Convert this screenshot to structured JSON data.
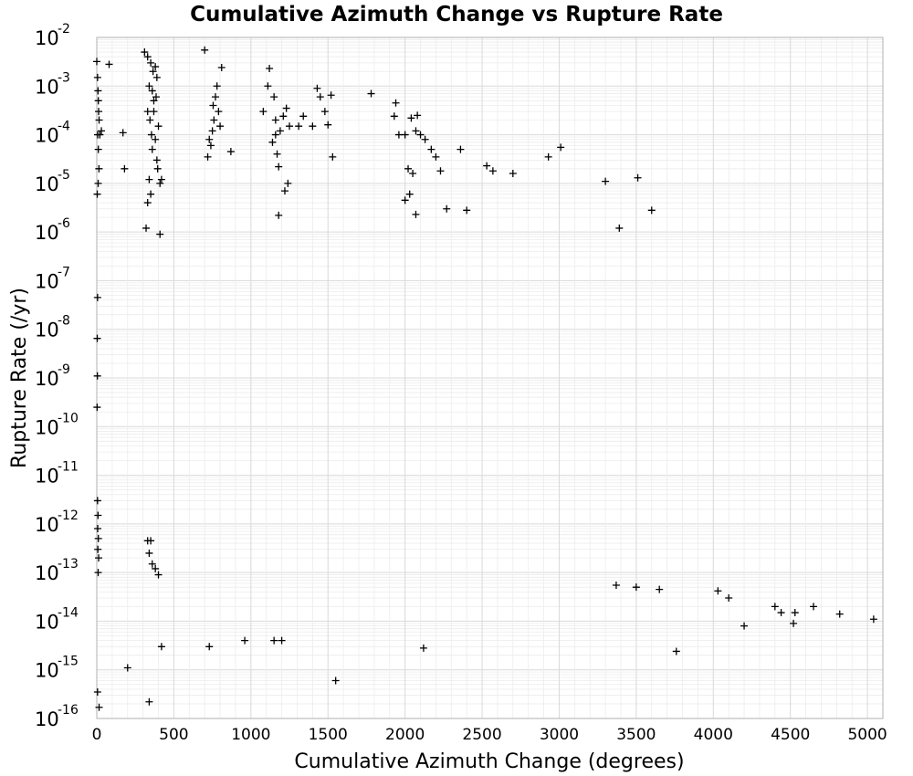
{
  "chart_data": {
    "type": "scatter",
    "title": "Cumulative Azimuth Change vs Rupture Rate",
    "xlabel": "Cumulative Azimuth Change (degrees)",
    "ylabel": "Rupture Rate (/yr)",
    "xlim": [
      0,
      5100
    ],
    "ylim": [
      1e-16,
      0.01
    ],
    "yscale": "log",
    "grid": true,
    "marker": "+",
    "marker_color": "#000000",
    "xticks": [
      "0",
      "500",
      "1000",
      "1500",
      "2000",
      "2500",
      "3000",
      "3500",
      "4000",
      "4500",
      "5000"
    ],
    "yticks": [
      {
        "base": "10",
        "exp": "-2"
      },
      {
        "base": "10",
        "exp": "-3"
      },
      {
        "base": "10",
        "exp": "-4"
      },
      {
        "base": "10",
        "exp": "-5"
      },
      {
        "base": "10",
        "exp": "-6"
      },
      {
        "base": "10",
        "exp": "-7"
      },
      {
        "base": "10",
        "exp": "-8"
      },
      {
        "base": "10",
        "exp": "-9"
      },
      {
        "base": "10",
        "exp": "-10"
      },
      {
        "base": "10",
        "exp": "-11"
      },
      {
        "base": "10",
        "exp": "-12"
      },
      {
        "base": "10",
        "exp": "-13"
      },
      {
        "base": "10",
        "exp": "-14"
      },
      {
        "base": "10",
        "exp": "-15"
      },
      {
        "base": "10",
        "exp": "-16"
      }
    ],
    "points": [
      [
        0,
        0.0032
      ],
      [
        5,
        0.0015
      ],
      [
        8,
        0.0008
      ],
      [
        10,
        0.0005
      ],
      [
        12,
        0.0003
      ],
      [
        15,
        0.0002
      ],
      [
        6,
        0.0001
      ],
      [
        10,
        5e-05
      ],
      [
        14,
        2e-05
      ],
      [
        9,
        1e-05
      ],
      [
        3,
        6e-06
      ],
      [
        20,
        0.0001
      ],
      [
        30,
        0.00012
      ],
      [
        80,
        0.0028
      ],
      [
        170,
        0.00011
      ],
      [
        180,
        2e-05
      ],
      [
        310,
        0.005
      ],
      [
        330,
        0.004
      ],
      [
        350,
        0.003
      ],
      [
        380,
        0.0025
      ],
      [
        390,
        0.0015
      ],
      [
        340,
        0.001
      ],
      [
        360,
        0.0008
      ],
      [
        370,
        0.0005
      ],
      [
        330,
        0.0003
      ],
      [
        345,
        0.0002
      ],
      [
        400,
        0.00015
      ],
      [
        355,
        0.0001
      ],
      [
        380,
        8e-05
      ],
      [
        360,
        5e-05
      ],
      [
        390,
        3e-05
      ],
      [
        340,
        1.2e-05
      ],
      [
        410,
        1e-05
      ],
      [
        420,
        1.2e-05
      ],
      [
        350,
        6e-06
      ],
      [
        330,
        4e-06
      ],
      [
        320,
        1.2e-06
      ],
      [
        410,
        9e-07
      ],
      [
        395,
        2e-05
      ],
      [
        370,
        0.0003
      ],
      [
        385,
        0.0006
      ],
      [
        365,
        0.002
      ],
      [
        700,
        0.0055
      ],
      [
        810,
        0.0024
      ],
      [
        780,
        0.001
      ],
      [
        770,
        0.0006
      ],
      [
        790,
        0.0003
      ],
      [
        760,
        0.0002
      ],
      [
        750,
        0.00012
      ],
      [
        730,
        8e-05
      ],
      [
        740,
        6e-05
      ],
      [
        720,
        3.5e-05
      ],
      [
        800,
        0.00015
      ],
      [
        870,
        4.5e-05
      ],
      [
        755,
        0.0004
      ],
      [
        1080,
        0.0003
      ],
      [
        1110,
        0.001
      ],
      [
        1120,
        0.0023
      ],
      [
        1150,
        0.0006
      ],
      [
        1160,
        0.0002
      ],
      [
        1190,
        0.00012
      ],
      [
        1210,
        0.00024
      ],
      [
        1230,
        0.00035
      ],
      [
        1170,
        4e-05
      ],
      [
        1180,
        2.2e-05
      ],
      [
        1240,
        1e-05
      ],
      [
        1220,
        7e-06
      ],
      [
        1180,
        2.2e-06
      ],
      [
        1140,
        7e-05
      ],
      [
        1160,
        0.0001
      ],
      [
        1250,
        0.00015
      ],
      [
        1310,
        0.00015
      ],
      [
        1340,
        0.00024
      ],
      [
        1430,
        0.0009
      ],
      [
        1450,
        0.0006
      ],
      [
        1520,
        0.00065
      ],
      [
        1530,
        3.5e-05
      ],
      [
        1500,
        0.00016
      ],
      [
        1400,
        0.00015
      ],
      [
        1480,
        0.0003
      ],
      [
        1780,
        0.0007
      ],
      [
        1940,
        0.00045
      ],
      [
        1930,
        0.00024
      ],
      [
        1960,
        0.0001
      ],
      [
        2000,
        0.0001
      ],
      [
        2040,
        0.00022
      ],
      [
        2080,
        0.00025
      ],
      [
        2070,
        0.00012
      ],
      [
        2100,
        0.0001
      ],
      [
        2130,
        8e-05
      ],
      [
        2020,
        2e-05
      ],
      [
        2050,
        1.6e-05
      ],
      [
        2000,
        4.5e-06
      ],
      [
        2030,
        6e-06
      ],
      [
        2070,
        2.3e-06
      ],
      [
        2170,
        5e-05
      ],
      [
        2200,
        3.5e-05
      ],
      [
        2230,
        1.8e-05
      ],
      [
        2270,
        3e-06
      ],
      [
        2360,
        5e-05
      ],
      [
        2400,
        2.8e-06
      ],
      [
        2530,
        2.3e-05
      ],
      [
        2570,
        1.8e-05
      ],
      [
        2700,
        1.6e-05
      ],
      [
        2930,
        3.5e-05
      ],
      [
        3010,
        5.5e-05
      ],
      [
        3300,
        1.1e-05
      ],
      [
        3390,
        1.2e-06
      ],
      [
        3510,
        1.3e-05
      ],
      [
        3600,
        2.8e-06
      ],
      [
        5,
        4.5e-08
      ],
      [
        3,
        6.5e-09
      ],
      [
        4,
        1.1e-09
      ],
      [
        2,
        2.5e-10
      ],
      [
        5,
        3e-12
      ],
      [
        8,
        1.5e-12
      ],
      [
        6,
        8e-13
      ],
      [
        10,
        5e-13
      ],
      [
        7,
        3e-13
      ],
      [
        12,
        2e-13
      ],
      [
        9,
        1e-13
      ],
      [
        330,
        4.5e-13
      ],
      [
        350,
        4.5e-13
      ],
      [
        340,
        2.5e-13
      ],
      [
        360,
        1.5e-13
      ],
      [
        380,
        1.2e-13
      ],
      [
        400,
        9e-14
      ],
      [
        200,
        1.1e-15
      ],
      [
        340,
        2.2e-16
      ],
      [
        1550,
        6e-16
      ],
      [
        5,
        3.5e-16
      ],
      [
        15,
        1.7e-16
      ],
      [
        2120,
        2.8e-15
      ],
      [
        3760,
        2.4e-15
      ],
      [
        3370,
        5.5e-14
      ],
      [
        3500,
        5e-14
      ],
      [
        3650,
        4.5e-14
      ],
      [
        4030,
        4.2e-14
      ],
      [
        4100,
        3e-14
      ],
      [
        4400,
        2e-14
      ],
      [
        4440,
        1.5e-14
      ],
      [
        4530,
        1.5e-14
      ],
      [
        4650,
        2e-14
      ],
      [
        4820,
        1.4e-14
      ],
      [
        5040,
        1.1e-14
      ],
      [
        4520,
        9e-15
      ],
      [
        4200,
        8e-15
      ],
      [
        730,
        3e-15
      ],
      [
        960,
        4e-15
      ],
      [
        1150,
        4e-15
      ],
      [
        1200,
        4e-15
      ],
      [
        420,
        3e-15
      ]
    ]
  }
}
